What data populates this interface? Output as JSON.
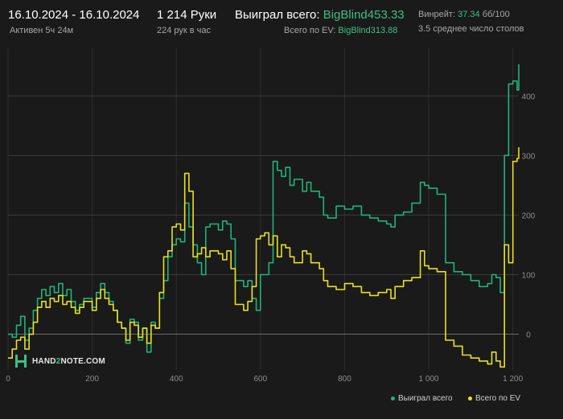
{
  "header": {
    "date_range": "16.10.2024 - 16.10.2024",
    "active": "Активен 5ч 24м",
    "hands": "1 214 Руки",
    "hands_per_hour": "224 рук в час",
    "won_label": "Выиграл всего:",
    "won_value": "BigBlind453.33",
    "ev_label": "Всего по EV:",
    "ev_value": "BigBlind313.88",
    "winrate_label": "Винрейт:",
    "winrate_value": "37.34",
    "winrate_unit": "бб/100",
    "tables": "3.5 среднее число столов"
  },
  "logo": {
    "text_left": "HAND",
    "text_mid": "2",
    "text_right": "NOTE.COM"
  },
  "colors": {
    "background": "#1a1a1a",
    "won": "#1fb37a",
    "ev": "#e8e020",
    "grid": "#3a3a3a",
    "accent": "#3fbf7f"
  },
  "chart_data": {
    "type": "line",
    "xlim": [
      0,
      1214
    ],
    "ylim": [
      -60,
      480
    ],
    "x_ticks": [
      0,
      200,
      400,
      600,
      800,
      1000,
      1200
    ],
    "x_tick_labels": [
      "0",
      "200",
      "400",
      "600",
      "800",
      "1 000",
      "1 200"
    ],
    "y_ticks": [
      0,
      100,
      200,
      300,
      400
    ],
    "y_tick_labels": [
      "0",
      "100",
      "200",
      "300",
      "400"
    ],
    "grid": true,
    "legend_position": "bottom-right",
    "series": [
      {
        "name": "Выиграл всего",
        "color": "#1fb37a",
        "points": [
          [
            0,
            0
          ],
          [
            10,
            -5
          ],
          [
            20,
            15
          ],
          [
            30,
            30
          ],
          [
            40,
            -10
          ],
          [
            50,
            10
          ],
          [
            60,
            40
          ],
          [
            70,
            60
          ],
          [
            80,
            75
          ],
          [
            90,
            65
          ],
          [
            100,
            80
          ],
          [
            110,
            70
          ],
          [
            120,
            85
          ],
          [
            130,
            65
          ],
          [
            140,
            75
          ],
          [
            150,
            55
          ],
          [
            160,
            40
          ],
          [
            170,
            50
          ],
          [
            180,
            60
          ],
          [
            200,
            45
          ],
          [
            210,
            70
          ],
          [
            220,
            85
          ],
          [
            230,
            70
          ],
          [
            240,
            55
          ],
          [
            250,
            40
          ],
          [
            260,
            20
          ],
          [
            270,
            10
          ],
          [
            280,
            -15
          ],
          [
            290,
            25
          ],
          [
            300,
            20
          ],
          [
            310,
            -10
          ],
          [
            320,
            10
          ],
          [
            330,
            -30
          ],
          [
            340,
            20
          ],
          [
            350,
            10
          ],
          [
            360,
            60
          ],
          [
            370,
            90
          ],
          [
            380,
            130
          ],
          [
            390,
            150
          ],
          [
            400,
            160
          ],
          [
            410,
            155
          ],
          [
            420,
            220
          ],
          [
            430,
            180
          ],
          [
            440,
            150
          ],
          [
            450,
            120
          ],
          [
            460,
            100
          ],
          [
            470,
            180
          ],
          [
            480,
            185
          ],
          [
            500,
            175
          ],
          [
            510,
            190
          ],
          [
            520,
            185
          ],
          [
            530,
            160
          ],
          [
            540,
            90
          ],
          [
            560,
            80
          ],
          [
            570,
            90
          ],
          [
            580,
            60
          ],
          [
            590,
            40
          ],
          [
            600,
            100
          ],
          [
            610,
            100
          ],
          [
            620,
            120
          ],
          [
            630,
            290
          ],
          [
            640,
            275
          ],
          [
            650,
            265
          ],
          [
            660,
            280
          ],
          [
            670,
            250
          ],
          [
            680,
            260
          ],
          [
            700,
            240
          ],
          [
            710,
            255
          ],
          [
            720,
            240
          ],
          [
            740,
            230
          ],
          [
            750,
            200
          ],
          [
            760,
            195
          ],
          [
            780,
            215
          ],
          [
            800,
            210
          ],
          [
            820,
            215
          ],
          [
            840,
            200
          ],
          [
            860,
            195
          ],
          [
            880,
            190
          ],
          [
            900,
            185
          ],
          [
            910,
            180
          ],
          [
            920,
            200
          ],
          [
            940,
            205
          ],
          [
            960,
            220
          ],
          [
            980,
            255
          ],
          [
            990,
            250
          ],
          [
            1000,
            245
          ],
          [
            1020,
            235
          ],
          [
            1040,
            120
          ],
          [
            1060,
            105
          ],
          [
            1080,
            100
          ],
          [
            1100,
            90
          ],
          [
            1120,
            80
          ],
          [
            1140,
            85
          ],
          [
            1150,
            100
          ],
          [
            1160,
            95
          ],
          [
            1170,
            70
          ],
          [
            1180,
            300
          ],
          [
            1190,
            420
          ],
          [
            1200,
            425
          ],
          [
            1210,
            410
          ],
          [
            1214,
            453.33
          ]
        ]
      },
      {
        "name": "Всего по EV",
        "color": "#e8e020",
        "points": [
          [
            0,
            -40
          ],
          [
            10,
            -25
          ],
          [
            20,
            -10
          ],
          [
            30,
            -5
          ],
          [
            40,
            -25
          ],
          [
            50,
            0
          ],
          [
            60,
            20
          ],
          [
            70,
            45
          ],
          [
            80,
            55
          ],
          [
            90,
            45
          ],
          [
            100,
            60
          ],
          [
            110,
            55
          ],
          [
            120,
            65
          ],
          [
            130,
            50
          ],
          [
            140,
            55
          ],
          [
            150,
            45
          ],
          [
            160,
            35
          ],
          [
            170,
            45
          ],
          [
            180,
            55
          ],
          [
            200,
            40
          ],
          [
            210,
            60
          ],
          [
            220,
            75
          ],
          [
            230,
            60
          ],
          [
            240,
            50
          ],
          [
            250,
            40
          ],
          [
            260,
            20
          ],
          [
            270,
            10
          ],
          [
            280,
            -10
          ],
          [
            290,
            20
          ],
          [
            300,
            15
          ],
          [
            310,
            -5
          ],
          [
            320,
            10
          ],
          [
            330,
            -15
          ],
          [
            340,
            15
          ],
          [
            350,
            10
          ],
          [
            360,
            70
          ],
          [
            370,
            130
          ],
          [
            380,
            140
          ],
          [
            390,
            180
          ],
          [
            400,
            185
          ],
          [
            410,
            175
          ],
          [
            420,
            270
          ],
          [
            430,
            240
          ],
          [
            440,
            130
          ],
          [
            450,
            135
          ],
          [
            460,
            145
          ],
          [
            470,
            130
          ],
          [
            480,
            140
          ],
          [
            500,
            135
          ],
          [
            510,
            125
          ],
          [
            520,
            140
          ],
          [
            530,
            110
          ],
          [
            540,
            50
          ],
          [
            560,
            40
          ],
          [
            570,
            55
          ],
          [
            580,
            80
          ],
          [
            590,
            160
          ],
          [
            600,
            165
          ],
          [
            610,
            170
          ],
          [
            620,
            150
          ],
          [
            630,
            165
          ],
          [
            640,
            130
          ],
          [
            650,
            150
          ],
          [
            660,
            145
          ],
          [
            670,
            130
          ],
          [
            680,
            120
          ],
          [
            700,
            140
          ],
          [
            710,
            135
          ],
          [
            720,
            120
          ],
          [
            740,
            110
          ],
          [
            750,
            90
          ],
          [
            760,
            80
          ],
          [
            780,
            75
          ],
          [
            800,
            85
          ],
          [
            820,
            80
          ],
          [
            840,
            70
          ],
          [
            860,
            65
          ],
          [
            880,
            70
          ],
          [
            900,
            75
          ],
          [
            910,
            60
          ],
          [
            920,
            80
          ],
          [
            940,
            90
          ],
          [
            960,
            95
          ],
          [
            980,
            140
          ],
          [
            990,
            115
          ],
          [
            1000,
            110
          ],
          [
            1020,
            105
          ],
          [
            1040,
            -10
          ],
          [
            1060,
            -20
          ],
          [
            1080,
            -35
          ],
          [
            1100,
            -40
          ],
          [
            1120,
            -45
          ],
          [
            1140,
            -50
          ],
          [
            1150,
            -30
          ],
          [
            1160,
            -45
          ],
          [
            1170,
            -55
          ],
          [
            1180,
            150
          ],
          [
            1190,
            120
          ],
          [
            1200,
            290
          ],
          [
            1210,
            295
          ],
          [
            1214,
            313.88
          ]
        ]
      }
    ]
  }
}
